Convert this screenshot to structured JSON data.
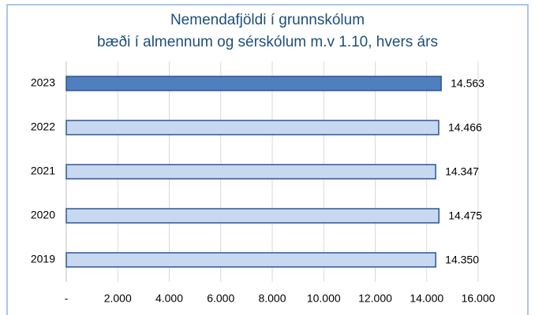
{
  "chart_data": {
    "type": "hbar",
    "title": "Nemendafjöldi í grunnskólum",
    "subtitle": "bæði í almennum og sérskólum m.v 1.10, hvers árs",
    "categories": [
      "2023",
      "2022",
      "2021",
      "2020",
      "2019"
    ],
    "values": [
      14563,
      14466,
      14347,
      14475,
      14350
    ],
    "value_labels": [
      "14.563",
      "14.466",
      "14.347",
      "14.475",
      "14.350"
    ],
    "colors": [
      "#4f7fbf",
      "#c6d9f1",
      "#c6d9f1",
      "#c6d9f1",
      "#c6d9f1"
    ],
    "edge_color": "#2f5597",
    "xlim": [
      0,
      16000
    ],
    "xticks": [
      {
        "value": 0,
        "label": "-"
      },
      {
        "value": 2000,
        "label": "2.000"
      },
      {
        "value": 4000,
        "label": "4.000"
      },
      {
        "value": 6000,
        "label": "6.000"
      },
      {
        "value": 8000,
        "label": "8.000"
      },
      {
        "value": 10000,
        "label": "10.000"
      },
      {
        "value": 12000,
        "label": "12.000"
      },
      {
        "value": 14000,
        "label": "14.000"
      },
      {
        "value": 16000,
        "label": "16.000"
      }
    ],
    "grid": true
  }
}
